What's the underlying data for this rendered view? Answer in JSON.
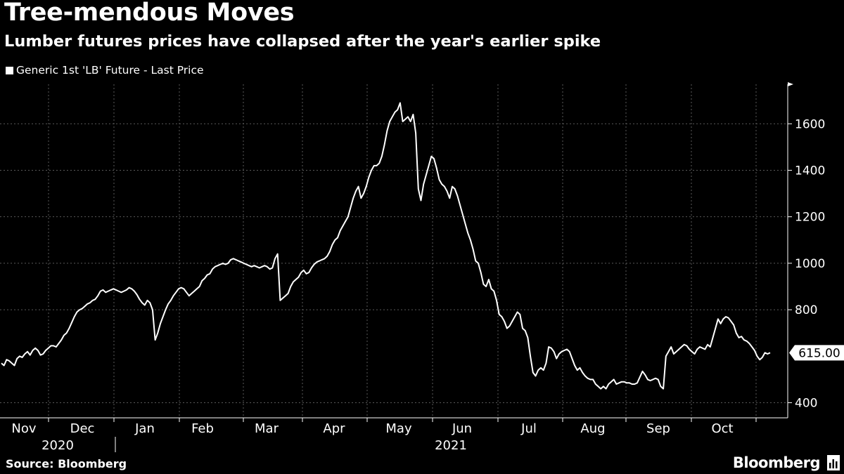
{
  "header": {
    "title": "Tree-mendous Moves",
    "subtitle": "Lumber futures prices have collapsed after the year's earlier spike"
  },
  "footer": {
    "source": "Source: Bloomberg",
    "brand": "Bloomberg"
  },
  "colors": {
    "background": "#000000",
    "line": "#ffffff",
    "grid": "#5a5a5a"
  },
  "chart_data": {
    "type": "line",
    "title": "Tree-mendous Moves",
    "subtitle": "Lumber futures prices have collapsed after the year's earlier spike",
    "xlabel": "",
    "ylabel": "",
    "ylim": [
      335,
      1770
    ],
    "yticks": [
      400,
      800,
      1000,
      1200,
      1400,
      1600
    ],
    "ytick_labels": [
      "400",
      "800",
      "1000",
      "1200",
      "1400",
      "1600"
    ],
    "y_axis_side": "right",
    "grid": true,
    "legend": "top-left",
    "month_labels": [
      "Nov",
      "Dec",
      "Jan",
      "Feb",
      "Mar",
      "Apr",
      "May",
      "Jun",
      "Jul",
      "Aug",
      "Sep",
      "Oct"
    ],
    "year_labels": [
      "2020",
      "2021"
    ],
    "last_value_label": "615.00",
    "series": [
      {
        "name": "Generic 1st 'LB' Future - Last Price",
        "values": [
          570,
          560,
          585,
          580,
          570,
          560,
          590,
          600,
          595,
          610,
          620,
          605,
          625,
          635,
          625,
          605,
          610,
          625,
          635,
          645,
          645,
          640,
          655,
          670,
          690,
          700,
          720,
          745,
          770,
          790,
          800,
          805,
          815,
          825,
          830,
          840,
          845,
          860,
          880,
          885,
          875,
          880,
          885,
          890,
          885,
          880,
          875,
          880,
          885,
          895,
          890,
          880,
          865,
          845,
          830,
          820,
          840,
          830,
          800,
          670,
          700,
          740,
          770,
          800,
          825,
          840,
          860,
          875,
          890,
          895,
          890,
          875,
          860,
          870,
          880,
          890,
          900,
          925,
          935,
          950,
          955,
          975,
          985,
          990,
          995,
          1000,
          995,
          1000,
          1015,
          1020,
          1015,
          1010,
          1005,
          1000,
          995,
          990,
          985,
          990,
          985,
          980,
          985,
          990,
          985,
          975,
          980,
          1020,
          1040,
          840,
          850,
          860,
          870,
          900,
          920,
          930,
          940,
          960,
          970,
          955,
          960,
          980,
          995,
          1005,
          1010,
          1015,
          1020,
          1030,
          1050,
          1080,
          1100,
          1110,
          1140,
          1160,
          1180,
          1200,
          1240,
          1280,
          1310,
          1330,
          1280,
          1300,
          1330,
          1370,
          1400,
          1420,
          1420,
          1430,
          1460,
          1510,
          1570,
          1610,
          1630,
          1650,
          1660,
          1690,
          1610,
          1620,
          1630,
          1610,
          1640,
          1560,
          1320,
          1270,
          1340,
          1380,
          1420,
          1460,
          1450,
          1410,
          1360,
          1340,
          1330,
          1310,
          1280,
          1330,
          1320,
          1290,
          1250,
          1210,
          1170,
          1130,
          1100,
          1060,
          1010,
          1000,
          960,
          910,
          900,
          930,
          890,
          880,
          840,
          780,
          770,
          750,
          720,
          730,
          750,
          770,
          790,
          780,
          720,
          710,
          680,
          600,
          530,
          515,
          540,
          550,
          540,
          570,
          640,
          635,
          620,
          590,
          610,
          620,
          625,
          630,
          620,
          590,
          560,
          540,
          550,
          530,
          515,
          505,
          500,
          500,
          480,
          470,
          460,
          470,
          460,
          480,
          490,
          500,
          480,
          485,
          490,
          490,
          485,
          485,
          480,
          480,
          485,
          510,
          535,
          520,
          500,
          495,
          500,
          505,
          500,
          470,
          460,
          600,
          620,
          640,
          610,
          620,
          630,
          640,
          650,
          645,
          630,
          620,
          610,
          630,
          640,
          635,
          630,
          650,
          640,
          680,
          720,
          760,
          740,
          760,
          770,
          765,
          750,
          735,
          700,
          680,
          685,
          670,
          665,
          655,
          640,
          625,
          600,
          585,
          595,
          615,
          610,
          615
        ]
      }
    ]
  }
}
